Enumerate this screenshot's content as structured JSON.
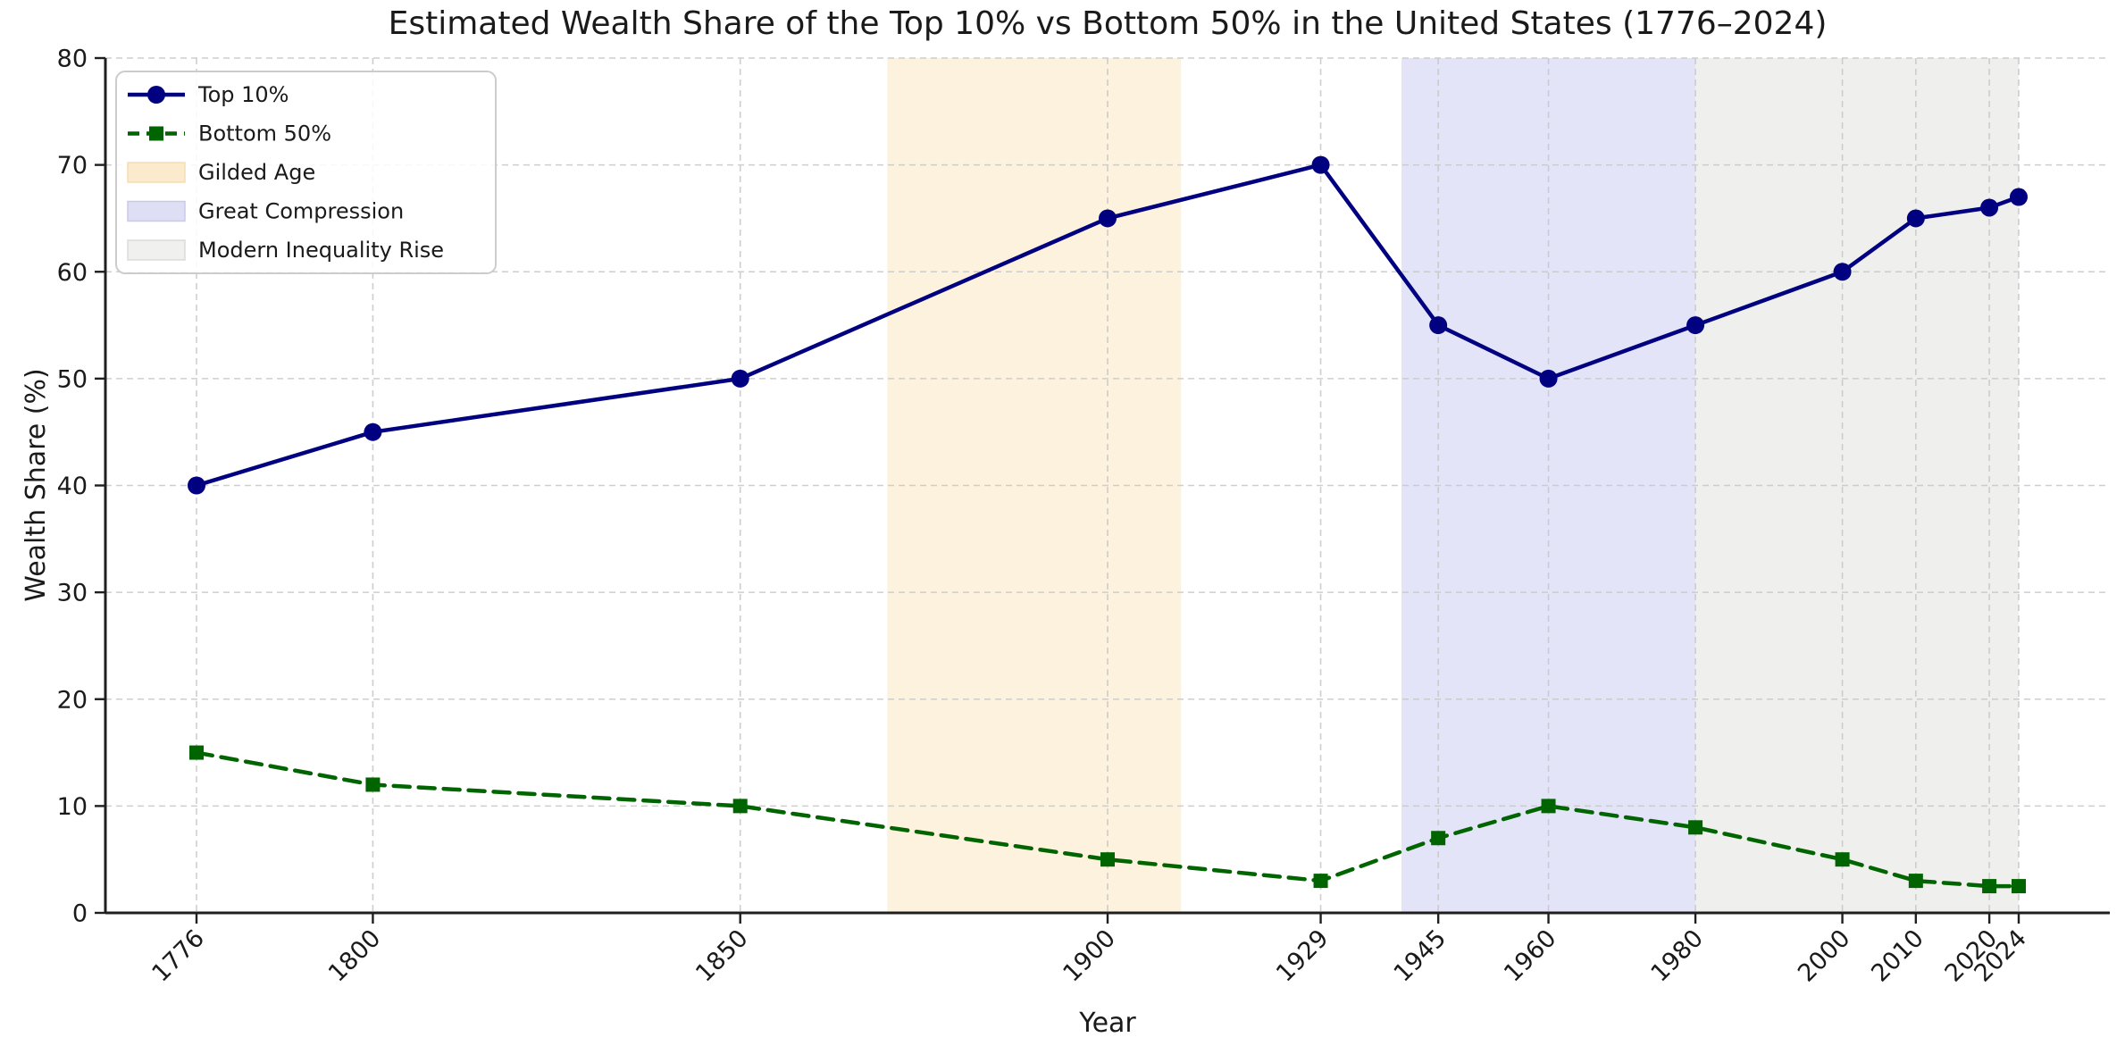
{
  "chart_data": {
    "type": "line",
    "title": "Estimated Wealth Share of the Top 10% vs Bottom 50% in the United States (1776–2024)",
    "xlabel": "Year",
    "ylabel": "Wealth Share (%)",
    "xlim": [
      1763.6,
      2036.4
    ],
    "ylim": [
      0,
      80
    ],
    "grid": true,
    "grid_style": "dashed",
    "legend_position": "upper-left",
    "x_ticks": [
      1776,
      1800,
      1850,
      1900,
      1929,
      1945,
      1960,
      1980,
      2000,
      2010,
      2020,
      2024
    ],
    "y_ticks": [
      0,
      10,
      20,
      30,
      40,
      50,
      60,
      70,
      80
    ],
    "x": [
      1776,
      1800,
      1850,
      1900,
      1929,
      1945,
      1960,
      1980,
      2000,
      2010,
      2020,
      2024
    ],
    "series": [
      {
        "name": "Top 10%",
        "color": "#000080",
        "line_style": "solid",
        "marker": "circle",
        "values": [
          40,
          45,
          50,
          65,
          70,
          55,
          50,
          55,
          60,
          65,
          66,
          67
        ]
      },
      {
        "name": "Bottom 50%",
        "color": "#006400",
        "line_style": "dashed",
        "marker": "square",
        "values": [
          15,
          12,
          10,
          5,
          3,
          7,
          10,
          8,
          5,
          3,
          2.5,
          2.5
        ]
      }
    ],
    "bands": [
      {
        "name": "Gilded Age",
        "start": 1870,
        "end": 1910,
        "fill": "#fdf2dd",
        "legend_fill": "#fbeacb",
        "legend_border": "#f3ddb2"
      },
      {
        "name": "Great Compression",
        "start": 1940,
        "end": 1980,
        "fill": "#e4e4f8",
        "legend_fill": "#dedef5",
        "legend_border": "#c9c9ec"
      },
      {
        "name": "Modern Inequality Rise",
        "start": 1980,
        "end": 2024,
        "fill": "#efefed",
        "legend_fill": "#f0f0ee",
        "legend_border": "#dbdbd8"
      }
    ],
    "colors": {
      "grid": "#c9c9c9",
      "spine": "#1f1f1f",
      "text": "#1a1a1a",
      "legend_border": "#cccccc",
      "legend_background": "#ffffff"
    }
  }
}
